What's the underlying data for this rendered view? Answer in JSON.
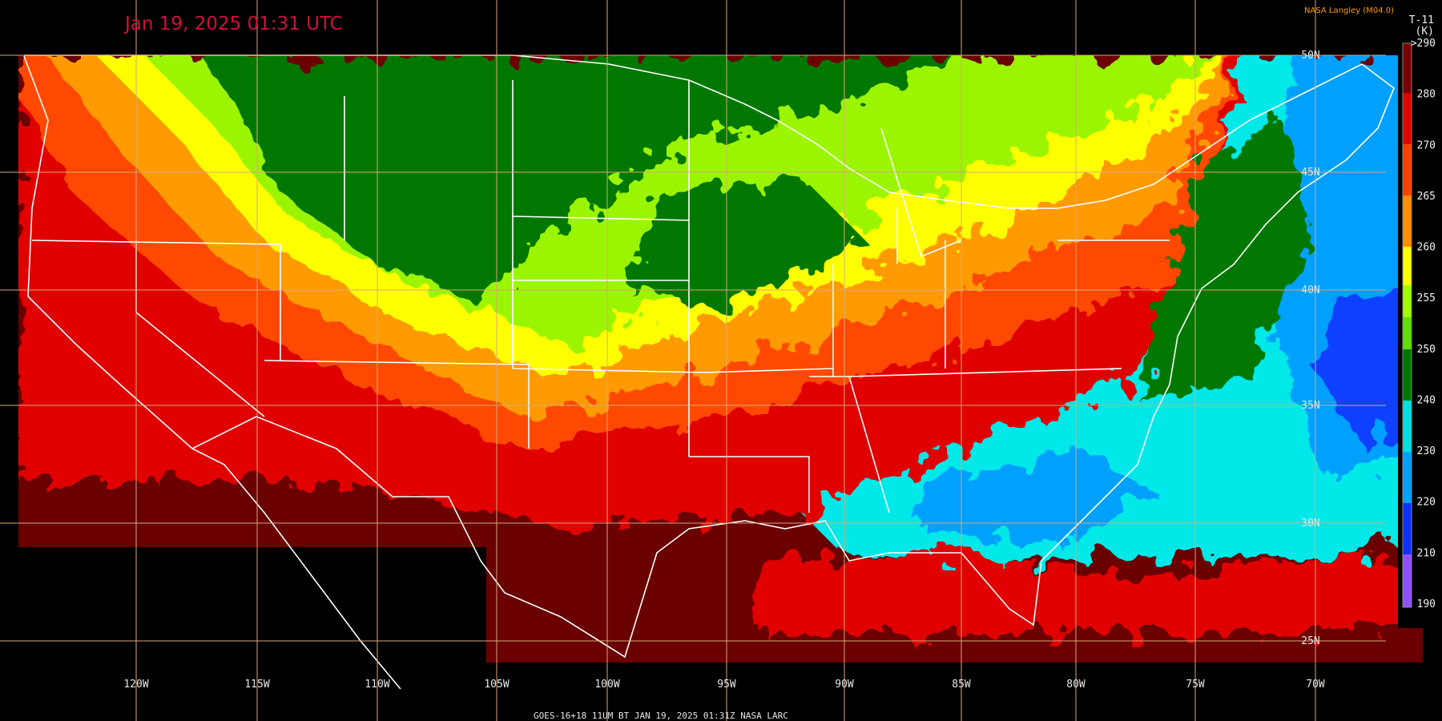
{
  "title": "Jan 19, 2025 01:31 UTC",
  "credit": "NASA Langley (M04.0)",
  "colorbar": {
    "title": "T-11",
    "unit": "(K)",
    "ticks": [
      ">290",
      "280",
      "270",
      "265",
      "260",
      "255",
      "250",
      "240",
      "230",
      "220",
      "210",
      "190"
    ]
  },
  "latitudes": [
    "50N",
    "45N",
    "40N",
    "35N",
    "30N",
    "25N"
  ],
  "longitudes": [
    "120W",
    "115W",
    "110W",
    "105W",
    "100W",
    "95W",
    "90W",
    "85W",
    "80W",
    "75W",
    "70W"
  ],
  "footer": "GOES-16+18  11UM BT  JAN 19, 2025 01:31Z  NASA LARC"
}
